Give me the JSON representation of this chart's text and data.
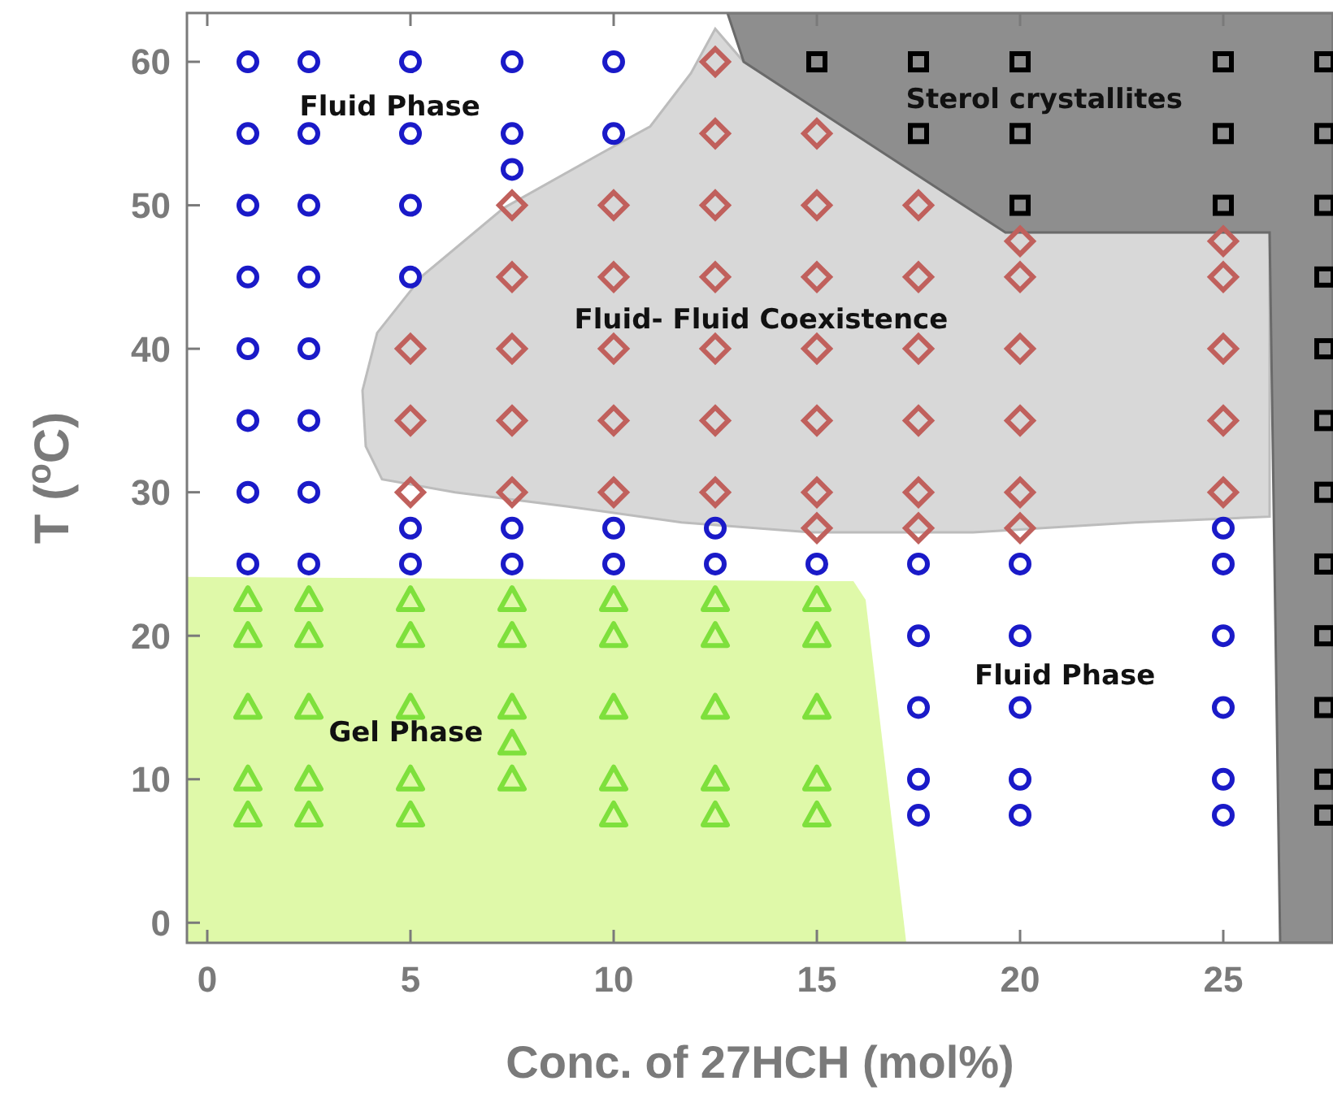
{
  "chart_data": {
    "type": "scatter",
    "xlabel": "Conc. of 27HCH (mol%)",
    "ylabel": "T ($^{o}$C)",
    "xlim": [
      -0.5,
      27.7
    ],
    "ylim": [
      -1.4,
      63.4
    ],
    "xticks": [
      0,
      5,
      10,
      15,
      20,
      25
    ],
    "yticks": [
      0,
      10,
      20,
      30,
      40,
      50,
      60
    ],
    "grid": false,
    "series": [
      {
        "color": "#1a1ac8",
        "marker": "circle",
        "x": [
          1,
          1,
          1,
          1,
          1,
          1,
          1,
          1,
          2.5,
          2.5,
          2.5,
          2.5,
          2.5,
          2.5,
          2.5,
          2.5,
          5,
          5,
          5,
          5,
          5,
          5,
          7.5,
          7.5,
          7.5,
          7.5,
          7.5,
          10,
          10,
          10,
          10,
          12.5,
          12.5,
          15,
          17.5,
          17.5,
          17.5,
          17.5,
          17.5,
          20,
          20,
          20,
          20,
          20,
          25,
          25,
          25,
          25,
          25,
          25
        ],
        "values": [
          60,
          55,
          50,
          45,
          40,
          35,
          30,
          25,
          60,
          55,
          50,
          45,
          40,
          35,
          30,
          25,
          60,
          55,
          50,
          45,
          27.5,
          25,
          60,
          55,
          52.5,
          27.5,
          25,
          60,
          55,
          27.5,
          25,
          27.5,
          25,
          25,
          25,
          20,
          15,
          10,
          7.5,
          25,
          20,
          15,
          10,
          7.5,
          27.5,
          25,
          20,
          15,
          10,
          7.5
        ]
      },
      {
        "color": "#c0605c",
        "marker": "diamond",
        "x": [
          5,
          5,
          5,
          7.5,
          7.5,
          7.5,
          7.5,
          7.5,
          10,
          10,
          10,
          10,
          10,
          12.5,
          12.5,
          12.5,
          12.5,
          12.5,
          12.5,
          12.5,
          15,
          15,
          15,
          15,
          15,
          15,
          15,
          17.5,
          17.5,
          17.5,
          17.5,
          17.5,
          17.5,
          20,
          20,
          20,
          20,
          20,
          20,
          25,
          25,
          25,
          25,
          25
        ],
        "values": [
          40,
          35,
          30,
          50,
          45,
          40,
          35,
          30,
          50,
          45,
          40,
          35,
          30,
          60,
          55,
          50,
          45,
          40,
          35,
          30,
          55,
          50,
          45,
          40,
          35,
          30,
          27.5,
          50,
          45,
          40,
          35,
          30,
          27.5,
          47.5,
          45,
          40,
          35,
          30,
          27.5,
          47.5,
          45,
          40,
          35,
          30
        ]
      },
      {
        "color": "#7ee03c",
        "marker": "triangle",
        "x": [
          1,
          1,
          1,
          1,
          1,
          2.5,
          2.5,
          2.5,
          2.5,
          2.5,
          5,
          5,
          5,
          5,
          5,
          7.5,
          7.5,
          7.5,
          7.5,
          7.5,
          10,
          10,
          10,
          10,
          10,
          12.5,
          12.5,
          12.5,
          12.5,
          12.5,
          15,
          15,
          15,
          15,
          15
        ],
        "values": [
          22.5,
          20,
          15,
          10,
          7.5,
          22.5,
          20,
          15,
          10,
          7.5,
          22.5,
          20,
          15,
          10,
          7.5,
          22.5,
          20,
          15,
          12.5,
          10,
          22.5,
          20,
          15,
          10,
          7.5,
          22.5,
          20,
          15,
          10,
          7.5,
          22.5,
          20,
          15,
          10,
          7.5
        ]
      },
      {
        "color": "#000000",
        "marker": "square",
        "x": [
          15,
          17.5,
          17.5,
          20,
          20,
          20,
          25,
          25,
          25,
          27.5,
          27.5,
          27.5,
          27.5,
          27.5,
          27.5,
          27.5,
          27.5,
          27.5,
          27.5,
          27.5,
          27.5
        ],
        "values": [
          60,
          60,
          55,
          60,
          55,
          50,
          60,
          55,
          50,
          60,
          55,
          50,
          45,
          40,
          35,
          30,
          25,
          20,
          15,
          10,
          7.5
        ]
      }
    ],
    "annotations": [
      "Fluid Phase",
      "Sterol crystallites",
      "Fluid- Fluid Coexistence",
      "Fluid Phase",
      "Gel Phase"
    ]
  }
}
